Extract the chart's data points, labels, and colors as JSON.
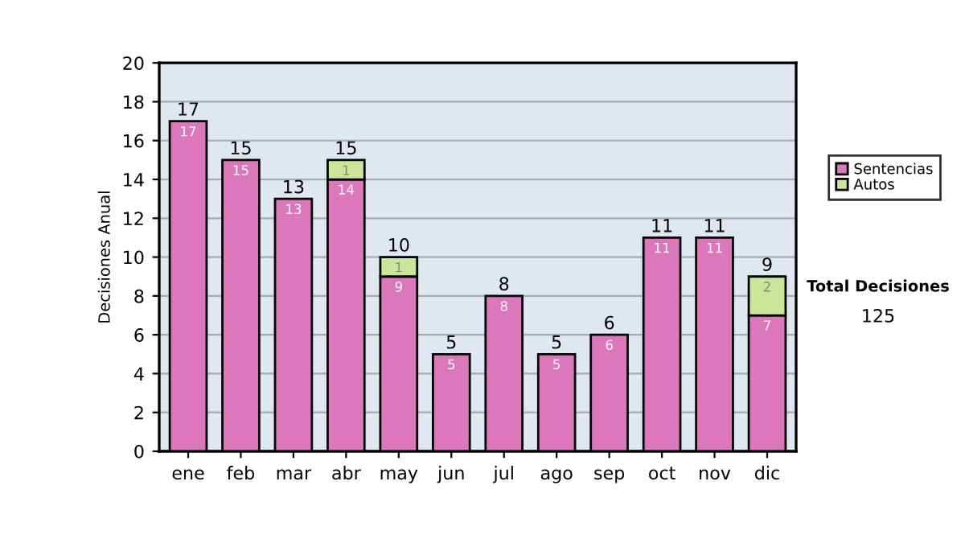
{
  "chart_data": {
    "type": "bar",
    "stacked": true,
    "ylabel": "Decisiones Anual",
    "categories": [
      "ene",
      "feb",
      "mar",
      "abr",
      "may",
      "jun",
      "jul",
      "ago",
      "sep",
      "oct",
      "nov",
      "dic"
    ],
    "series": [
      {
        "name": "Sentencias",
        "color": "#dd77bb",
        "values": [
          17,
          15,
          13,
          14,
          9,
          5,
          8,
          5,
          6,
          11,
          11,
          7
        ]
      },
      {
        "name": "Autos",
        "color": "#cce699",
        "values": [
          null,
          null,
          null,
          1,
          1,
          null,
          null,
          null,
          null,
          null,
          null,
          2
        ]
      }
    ],
    "data_labels": true,
    "totals": [
      "17",
      "15",
      "13",
      "15",
      "10",
      "5",
      "8",
      "5",
      "6",
      "11",
      "11",
      "9"
    ],
    "ylim": [
      0,
      20
    ],
    "yticks": [
      0,
      2,
      4,
      6,
      8,
      10,
      12,
      14,
      16,
      18,
      20
    ],
    "grid": "y",
    "legend": "right",
    "annotations": [
      "Total Decisiones",
      "125"
    ]
  }
}
